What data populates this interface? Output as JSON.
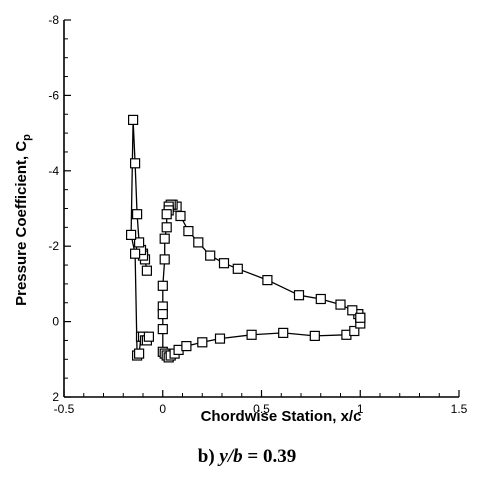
{
  "caption": {
    "prefix": "b) ",
    "var": "y/b",
    "rest": " = 0.39"
  },
  "chart_data": {
    "type": "line",
    "xlabel": "Chordwise Station, x/c",
    "ylabel": "Pressure Coefficient, C",
    "ylabel_sub": "p",
    "xlim": [
      -0.5,
      1.5
    ],
    "ylim": [
      2,
      -8
    ],
    "y_inverted": true,
    "xticks": [
      -0.5,
      0,
      0.5,
      1,
      1.5
    ],
    "xtick_labels": [
      "-0.5",
      "0",
      "0.5",
      "1",
      "1.5"
    ],
    "yticks": [
      2,
      0,
      -2,
      -4,
      -6,
      -8
    ],
    "ytick_labels": [
      "2",
      "0",
      "-2",
      "-4",
      "-6",
      "-8"
    ],
    "grid": false,
    "marker": "open-square",
    "series": [
      {
        "name": "",
        "x": [
          1.0,
          0.99,
          0.96,
          0.9,
          0.8,
          0.69,
          0.53,
          0.38,
          0.31,
          0.24,
          0.18,
          0.13,
          0.09,
          0.07,
          0.05,
          0.04,
          0.03,
          0.03,
          0.02,
          0.02,
          0.01,
          0.01,
          0.0,
          0.0,
          0.0,
          0.0,
          0.0,
          0.01,
          0.02,
          0.03,
          0.04,
          0.06,
          0.08,
          0.12,
          0.2,
          0.29,
          0.45,
          0.61,
          0.77,
          0.93,
          0.97,
          1.0,
          1.0
        ],
        "y": [
          -0.1,
          -0.2,
          -0.3,
          -0.45,
          -0.6,
          -0.7,
          -1.1,
          -1.4,
          -1.55,
          -1.75,
          -2.1,
          -2.4,
          -2.8,
          -3.05,
          -3.1,
          -3.1,
          -3.05,
          -2.95,
          -2.85,
          -2.5,
          -2.2,
          -1.65,
          -0.95,
          -0.4,
          -0.2,
          0.2,
          0.8,
          0.85,
          0.9,
          0.95,
          0.9,
          0.85,
          0.75,
          0.65,
          0.55,
          0.45,
          0.35,
          0.3,
          0.38,
          0.35,
          0.25,
          0.05,
          -0.1
        ]
      },
      {
        "name": "",
        "x": [
          -0.08,
          -0.09,
          -0.1,
          -0.1,
          -0.11,
          -0.12,
          -0.13,
          -0.14,
          -0.15,
          -0.16,
          -0.14,
          -0.13,
          -0.12,
          -0.11,
          -0.1,
          -0.09,
          -0.08,
          -0.07
        ],
        "y": [
          -1.35,
          -1.65,
          -1.8,
          -1.75,
          -1.9,
          -2.1,
          -2.85,
          -4.2,
          -5.35,
          -2.3,
          -1.8,
          0.9,
          0.85,
          0.4,
          0.4,
          0.5,
          0.5,
          0.4
        ]
      }
    ]
  }
}
